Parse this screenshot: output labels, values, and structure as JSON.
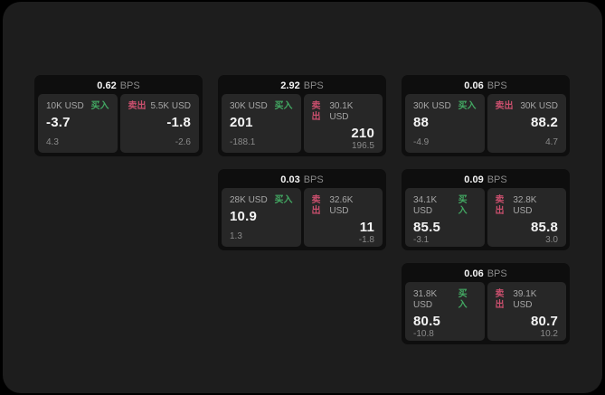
{
  "labels": {
    "bps_unit": "BPS",
    "buy": "买入",
    "sell": "卖出"
  },
  "colors": {
    "outer_bg": "#000000",
    "screen_bg": "#1d1d1d",
    "card_bg": "#0e0e0e",
    "panel_bg": "#272727",
    "text_white": "#f4f4f4",
    "text_gray": "#a6a6a6",
    "text_dim": "#8a8a8a",
    "buy_green": "#43a963",
    "sell_red": "#c94f6d"
  },
  "cards": [
    {
      "bps": "0.62",
      "buy": {
        "size": "10K USD",
        "price": "-3.7",
        "delta": "4.3"
      },
      "sell": {
        "size": "5.5K USD",
        "price": "-1.8",
        "delta": "-2.6"
      }
    },
    {
      "bps": "2.92",
      "buy": {
        "size": "30K USD",
        "price": "201",
        "delta": "-188.1"
      },
      "sell": {
        "size": "30.1K USD",
        "price": "210",
        "delta": "196.5"
      }
    },
    {
      "bps": "0.06",
      "buy": {
        "size": "30K USD",
        "price": "88",
        "delta": "-4.9"
      },
      "sell": {
        "size": "30K USD",
        "price": "88.2",
        "delta": "4.7"
      }
    },
    {
      "bps": "0.03",
      "buy": {
        "size": "28K USD",
        "price": "10.9",
        "delta": "1.3"
      },
      "sell": {
        "size": "32.6K USD",
        "price": "11",
        "delta": "-1.8"
      }
    },
    {
      "bps": "0.09",
      "buy": {
        "size": "34.1K USD",
        "price": "85.5",
        "delta": "-3.1"
      },
      "sell": {
        "size": "32.8K USD",
        "price": "85.8",
        "delta": "3.0"
      }
    },
    {
      "bps": "0.06",
      "buy": {
        "size": "31.8K USD",
        "price": "80.5",
        "delta": "-10.8"
      },
      "sell": {
        "size": "39.1K USD",
        "price": "80.7",
        "delta": "10.2"
      }
    }
  ]
}
